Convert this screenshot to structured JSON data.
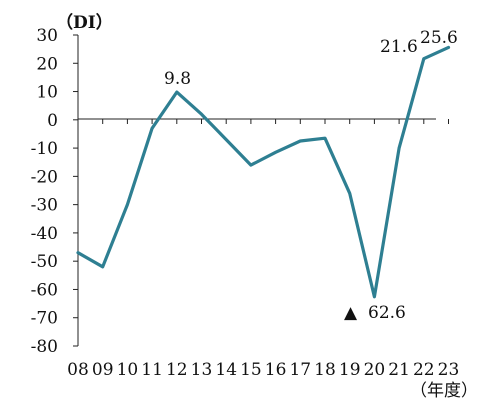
{
  "chart_data": {
    "type": "line",
    "ylabel": "（DI）",
    "xlabel": "（年度）",
    "categories": [
      "08",
      "09",
      "10",
      "11",
      "12",
      "13",
      "14",
      "15",
      "16",
      "17",
      "18",
      "19",
      "20",
      "21",
      "22",
      "23"
    ],
    "yticks": [
      "30",
      "20",
      "10",
      "0",
      "-10",
      "-20",
      "-30",
      "-40",
      "-50",
      "-60",
      "-70",
      "-80"
    ],
    "ylim": [
      -80,
      30
    ],
    "series": [
      {
        "values": [
          -47,
          -52,
          -30,
          -3,
          9.8,
          2,
          -7,
          -16,
          -11.5,
          -7.5,
          -6.5,
          -26,
          -62.6,
          -10,
          21.6,
          25.6
        ]
      }
    ],
    "annotations": {
      "max_2012": "9.8",
      "min_2020_marker": "▲",
      "min_2020_value": "62.6",
      "v_2022": "21.6",
      "v_2023": "25.6"
    },
    "line_color": "#2e7f92",
    "grid": false,
    "zero_line": true
  }
}
